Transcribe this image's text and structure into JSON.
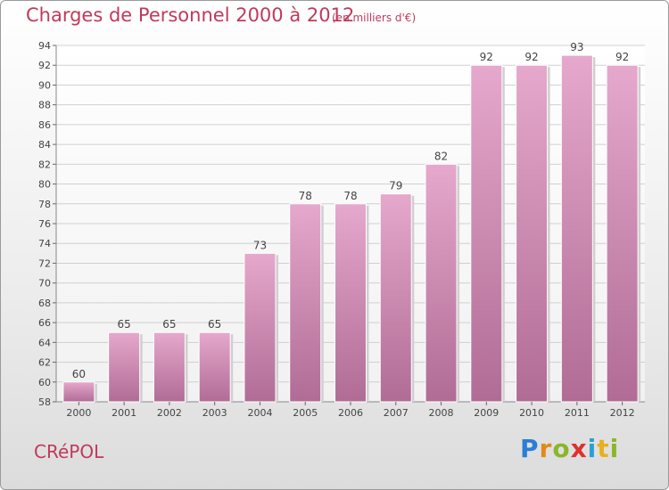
{
  "header": {
    "title": "Charges de Personnel 2000 à 2012",
    "subtitle": "(en milliers d'€)"
  },
  "footer": {
    "town": "CRéPOL",
    "logo_letters": [
      "P",
      "r",
      "o",
      "x",
      "i",
      "t",
      "i"
    ],
    "logo_colors": [
      "#2a7fd4",
      "#e08a1a",
      "#8ab62b",
      "#e03030",
      "#2a9fd4",
      "#e8b020",
      "#8ab62b"
    ]
  },
  "colors": {
    "title": "#c03a5a",
    "bar_top": "#e6a8cc",
    "bar_bottom": "#b06c95",
    "grid": "#d0d0d0"
  },
  "chart_data": {
    "type": "bar",
    "title": "Charges de Personnel 2000 à 2012",
    "subtitle": "(en milliers d'€)",
    "categories": [
      "2000",
      "2001",
      "2002",
      "2003",
      "2004",
      "2005",
      "2006",
      "2007",
      "2008",
      "2009",
      "2010",
      "2011",
      "2012"
    ],
    "values": [
      60,
      65,
      65,
      65,
      73,
      78,
      78,
      79,
      82,
      92,
      92,
      93,
      92
    ],
    "ylim": [
      58,
      94
    ],
    "yticks": [
      58,
      60,
      62,
      64,
      66,
      68,
      70,
      72,
      74,
      76,
      78,
      80,
      82,
      84,
      86,
      88,
      90,
      92,
      94
    ],
    "grid": true,
    "data_labels": true
  }
}
